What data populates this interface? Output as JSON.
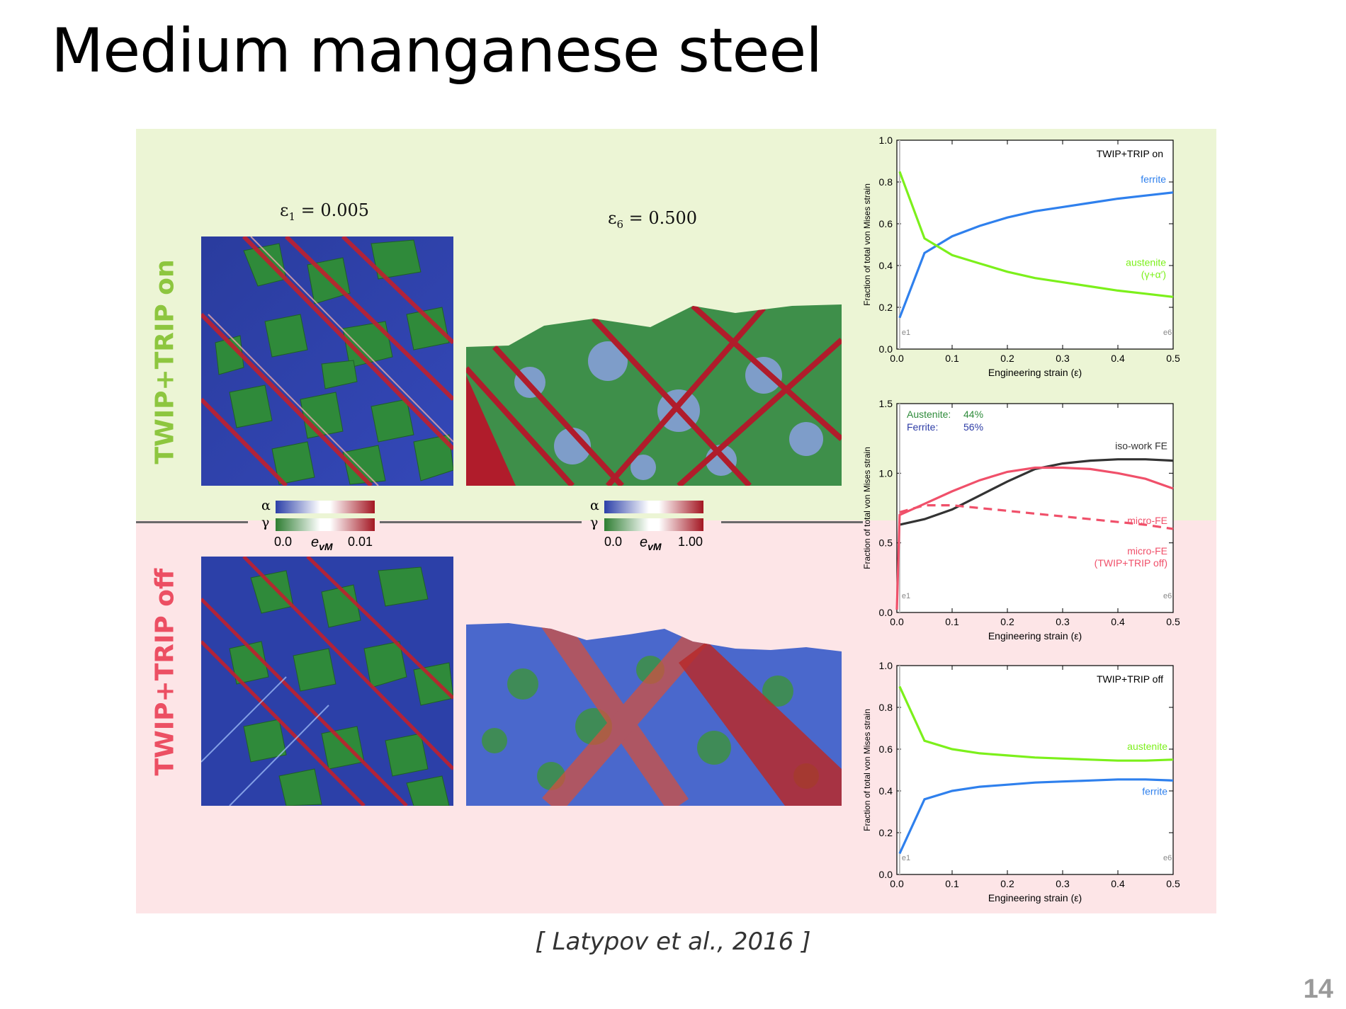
{
  "slide": {
    "title": "Medium manganese steel",
    "citation": "[ Latypov et al., 2016 ]",
    "page_number": "14"
  },
  "rows": {
    "top_label": "TWIP+TRIP on",
    "bottom_label": "TWIP+TRIP off",
    "top_color": "#8dc63f",
    "bottom_color": "#ec4f63"
  },
  "strain_states": [
    {
      "symbol": "ε",
      "sub": "1",
      "value": " = 0.005"
    },
    {
      "symbol": "ε",
      "sub": "6",
      "value": " = 0.500"
    }
  ],
  "colorbars": [
    {
      "alpha": "α",
      "gamma": "γ",
      "min": "0.0",
      "max": "0.01",
      "label": "e",
      "label_sub": "vM"
    },
    {
      "alpha": "α",
      "gamma": "γ",
      "min": "0.0",
      "max": "1.00",
      "label": "e",
      "label_sub": "vM"
    }
  ],
  "colors": {
    "alpha_blue": "#2b3fa8",
    "gamma_green": "#2e7d32",
    "strain_red": "#a31622",
    "ferrite": "#2f80ed",
    "austenite": "#7cf01b",
    "iso_work": "#333333",
    "micro_fe": "#f0506a"
  },
  "chart_data": [
    {
      "type": "line",
      "title": "TWIP+TRIP on",
      "xlabel": "Engineering strain (ε)",
      "ylabel": "Fraction of total von Mises strain",
      "xlim": [
        0,
        0.5
      ],
      "ylim": [
        0,
        1.0
      ],
      "x_ticks": [
        "0.0",
        "0.1",
        "0.2",
        "0.3",
        "0.4",
        "0.5"
      ],
      "y_ticks": [
        "0.0",
        "0.2",
        "0.4",
        "0.6",
        "0.8",
        "1.0"
      ],
      "markers": [
        "e1",
        "e6"
      ],
      "series": [
        {
          "name": "ferrite",
          "color": "#2f80ed",
          "dashed": false,
          "x": [
            0.005,
            0.05,
            0.1,
            0.15,
            0.2,
            0.25,
            0.3,
            0.35,
            0.4,
            0.45,
            0.5
          ],
          "y": [
            0.15,
            0.46,
            0.54,
            0.59,
            0.63,
            0.66,
            0.68,
            0.7,
            0.72,
            0.735,
            0.75
          ]
        },
        {
          "name": "austenite",
          "sublabel": "(γ+α′)",
          "color": "#7cf01b",
          "dashed": false,
          "x": [
            0.005,
            0.05,
            0.1,
            0.15,
            0.2,
            0.25,
            0.3,
            0.35,
            0.4,
            0.45,
            0.5
          ],
          "y": [
            0.85,
            0.53,
            0.45,
            0.41,
            0.37,
            0.34,
            0.32,
            0.3,
            0.28,
            0.265,
            0.25
          ]
        }
      ]
    },
    {
      "type": "line",
      "title": "",
      "xlabel": "Engineering strain (ε)",
      "ylabel": "Fraction of total von Mises strain",
      "xlim": [
        0,
        0.5
      ],
      "ylim": [
        0,
        1.5
      ],
      "x_ticks": [
        "0.0",
        "0.1",
        "0.2",
        "0.3",
        "0.4",
        "0.5"
      ],
      "y_ticks": [
        "0.0",
        "0.5",
        "1.0",
        "1.5"
      ],
      "markers": [
        "e1",
        "e6"
      ],
      "annotations": [
        {
          "label": "Austenite:",
          "value": "44%",
          "color": "#2e8b3a"
        },
        {
          "label": "Ferrite:",
          "value": "56%",
          "color": "#2d3ca6"
        }
      ],
      "series": [
        {
          "name": "iso-work FE",
          "color": "#333333",
          "dashed": false,
          "x": [
            0.005,
            0.05,
            0.1,
            0.15,
            0.2,
            0.25,
            0.3,
            0.35,
            0.4,
            0.45,
            0.5
          ],
          "y": [
            0.63,
            0.67,
            0.74,
            0.84,
            0.94,
            1.03,
            1.07,
            1.09,
            1.1,
            1.1,
            1.09
          ]
        },
        {
          "name": "micro-FE",
          "color": "#f0506a",
          "dashed": false,
          "x": [
            0.0,
            0.005,
            0.05,
            0.1,
            0.15,
            0.2,
            0.25,
            0.3,
            0.35,
            0.4,
            0.45,
            0.5
          ],
          "y": [
            0.02,
            0.7,
            0.78,
            0.87,
            0.95,
            1.01,
            1.04,
            1.04,
            1.03,
            1.0,
            0.96,
            0.89
          ]
        },
        {
          "name": "micro-FE",
          "sublabel": "(TWIP+TRIP off)",
          "color": "#f0506a",
          "dashed": true,
          "x": [
            0.005,
            0.05,
            0.1,
            0.15,
            0.2,
            0.25,
            0.3,
            0.35,
            0.4,
            0.45,
            0.5
          ],
          "y": [
            0.72,
            0.77,
            0.77,
            0.75,
            0.73,
            0.71,
            0.69,
            0.67,
            0.65,
            0.63,
            0.6
          ]
        }
      ]
    },
    {
      "type": "line",
      "title": "TWIP+TRIP off",
      "xlabel": "Engineering strain (ε)",
      "ylabel": "Fraction of total von Mises strain",
      "xlim": [
        0,
        0.5
      ],
      "ylim": [
        0,
        1.0
      ],
      "x_ticks": [
        "0.0",
        "0.1",
        "0.2",
        "0.3",
        "0.4",
        "0.5"
      ],
      "y_ticks": [
        "0.0",
        "0.2",
        "0.4",
        "0.6",
        "0.8",
        "1.0"
      ],
      "markers": [
        "e1",
        "e6"
      ],
      "series": [
        {
          "name": "austenite",
          "color": "#7cf01b",
          "dashed": false,
          "x": [
            0.005,
            0.05,
            0.1,
            0.15,
            0.2,
            0.25,
            0.3,
            0.35,
            0.4,
            0.45,
            0.5
          ],
          "y": [
            0.9,
            0.64,
            0.6,
            0.58,
            0.57,
            0.56,
            0.555,
            0.55,
            0.545,
            0.545,
            0.55
          ]
        },
        {
          "name": "ferrite",
          "color": "#2f80ed",
          "dashed": false,
          "x": [
            0.005,
            0.05,
            0.1,
            0.15,
            0.2,
            0.25,
            0.3,
            0.35,
            0.4,
            0.45,
            0.5
          ],
          "y": [
            0.1,
            0.36,
            0.4,
            0.42,
            0.43,
            0.44,
            0.445,
            0.45,
            0.455,
            0.455,
            0.45
          ]
        }
      ]
    }
  ]
}
